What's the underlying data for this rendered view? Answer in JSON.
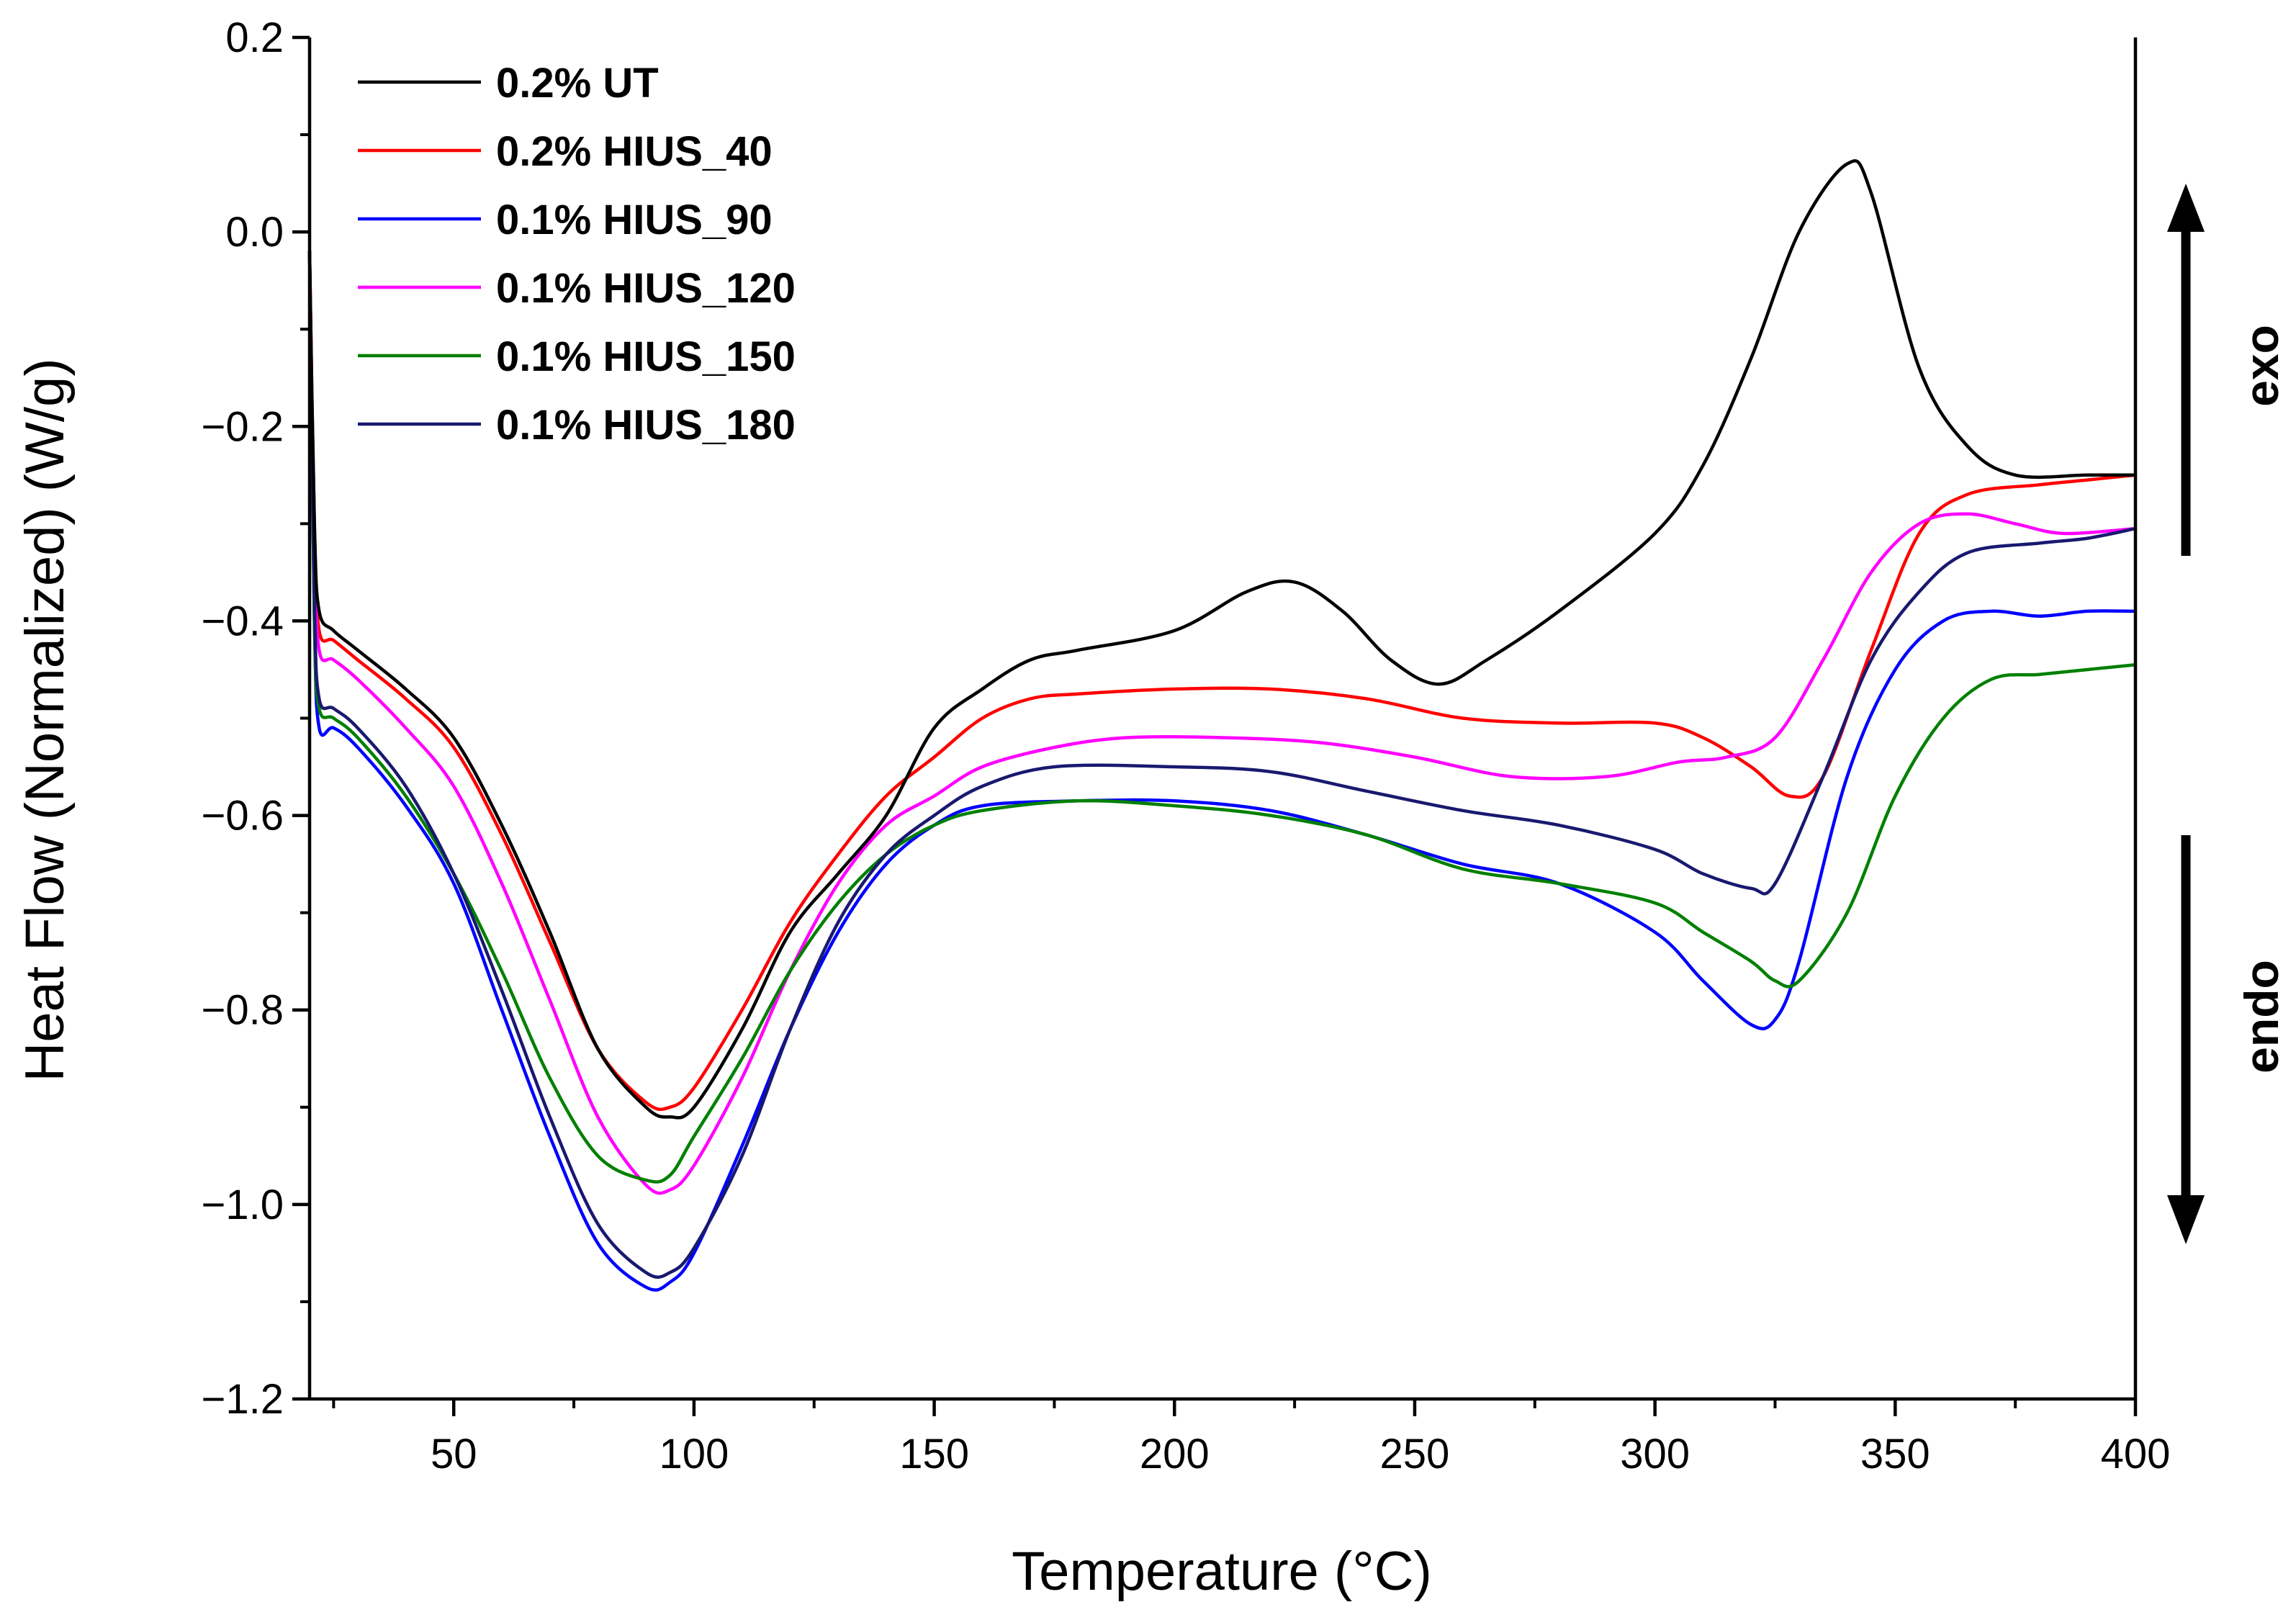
{
  "chart_data": {
    "type": "line",
    "title": "",
    "xlabel": "Temperature (°C)",
    "ylabel": "Heat Flow (Normalized) (W/g)",
    "xlim": [
      20,
      400
    ],
    "ylim": [
      -1.2,
      0.2
    ],
    "xticks": [
      50,
      100,
      150,
      200,
      250,
      300,
      350,
      400
    ],
    "xtick_labels": [
      "50",
      "100",
      "150",
      "200",
      "250",
      "300",
      "350",
      "400"
    ],
    "yticks": [
      -1.2,
      -1.0,
      -0.8,
      -0.6,
      -0.4,
      -0.2,
      0.0,
      0.2
    ],
    "ytick_labels": [
      "−1.2",
      "−1.0",
      "−0.8",
      "−0.6",
      "−0.4",
      "−0.2",
      "0.0",
      "0.2"
    ],
    "grid": false,
    "legend_position": "top-left",
    "annotations": {
      "exo": "exo",
      "endo": "endo"
    },
    "series": [
      {
        "name": "0.2% UT",
        "color": "#000000",
        "points": [
          [
            20,
            -0.02
          ],
          [
            21,
            -0.3
          ],
          [
            22,
            -0.39
          ],
          [
            25,
            -0.41
          ],
          [
            30,
            -0.43
          ],
          [
            40,
            -0.47
          ],
          [
            50,
            -0.52
          ],
          [
            60,
            -0.61
          ],
          [
            70,
            -0.72
          ],
          [
            80,
            -0.84
          ],
          [
            90,
            -0.9
          ],
          [
            95,
            -0.91
          ],
          [
            100,
            -0.9
          ],
          [
            110,
            -0.82
          ],
          [
            120,
            -0.72
          ],
          [
            130,
            -0.66
          ],
          [
            140,
            -0.6
          ],
          [
            150,
            -0.51
          ],
          [
            160,
            -0.47
          ],
          [
            170,
            -0.44
          ],
          [
            180,
            -0.43
          ],
          [
            200,
            -0.41
          ],
          [
            215,
            -0.37
          ],
          [
            225,
            -0.36
          ],
          [
            235,
            -0.39
          ],
          [
            245,
            -0.44
          ],
          [
            255,
            -0.465
          ],
          [
            265,
            -0.44
          ],
          [
            280,
            -0.39
          ],
          [
            300,
            -0.31
          ],
          [
            310,
            -0.24
          ],
          [
            320,
            -0.13
          ],
          [
            330,
            0.0
          ],
          [
            340,
            0.07
          ],
          [
            345,
            0.04
          ],
          [
            355,
            -0.14
          ],
          [
            365,
            -0.22
          ],
          [
            375,
            -0.25
          ],
          [
            390,
            -0.25
          ],
          [
            400,
            -0.25
          ]
        ]
      },
      {
        "name": "0.2% HIUS_40",
        "color": "#ff0000",
        "points": [
          [
            20,
            -0.02
          ],
          [
            21,
            -0.3
          ],
          [
            22,
            -0.41
          ],
          [
            25,
            -0.42
          ],
          [
            30,
            -0.44
          ],
          [
            40,
            -0.48
          ],
          [
            50,
            -0.53
          ],
          [
            60,
            -0.62
          ],
          [
            70,
            -0.73
          ],
          [
            80,
            -0.84
          ],
          [
            90,
            -0.895
          ],
          [
            95,
            -0.9
          ],
          [
            100,
            -0.88
          ],
          [
            110,
            -0.8
          ],
          [
            120,
            -0.71
          ],
          [
            130,
            -0.64
          ],
          [
            140,
            -0.58
          ],
          [
            150,
            -0.54
          ],
          [
            160,
            -0.5
          ],
          [
            170,
            -0.48
          ],
          [
            180,
            -0.475
          ],
          [
            200,
            -0.47
          ],
          [
            220,
            -0.47
          ],
          [
            240,
            -0.48
          ],
          [
            260,
            -0.5
          ],
          [
            280,
            -0.505
          ],
          [
            300,
            -0.505
          ],
          [
            310,
            -0.52
          ],
          [
            320,
            -0.55
          ],
          [
            328,
            -0.58
          ],
          [
            335,
            -0.56
          ],
          [
            345,
            -0.43
          ],
          [
            355,
            -0.31
          ],
          [
            365,
            -0.27
          ],
          [
            380,
            -0.26
          ],
          [
            390,
            -0.255
          ],
          [
            400,
            -0.25
          ]
        ]
      },
      {
        "name": "0.1% HIUS_90",
        "color": "#0000ff",
        "points": [
          [
            20,
            -0.02
          ],
          [
            21,
            -0.4
          ],
          [
            22,
            -0.51
          ],
          [
            25,
            -0.51
          ],
          [
            30,
            -0.53
          ],
          [
            40,
            -0.59
          ],
          [
            50,
            -0.67
          ],
          [
            60,
            -0.8
          ],
          [
            70,
            -0.93
          ],
          [
            80,
            -1.04
          ],
          [
            90,
            -1.085
          ],
          [
            95,
            -1.08
          ],
          [
            100,
            -1.05
          ],
          [
            110,
            -0.94
          ],
          [
            120,
            -0.82
          ],
          [
            130,
            -0.72
          ],
          [
            140,
            -0.65
          ],
          [
            150,
            -0.61
          ],
          [
            160,
            -0.59
          ],
          [
            180,
            -0.585
          ],
          [
            200,
            -0.585
          ],
          [
            220,
            -0.595
          ],
          [
            240,
            -0.62
          ],
          [
            260,
            -0.65
          ],
          [
            280,
            -0.67
          ],
          [
            300,
            -0.72
          ],
          [
            310,
            -0.77
          ],
          [
            320,
            -0.815
          ],
          [
            325,
            -0.81
          ],
          [
            330,
            -0.75
          ],
          [
            340,
            -0.56
          ],
          [
            350,
            -0.45
          ],
          [
            360,
            -0.4
          ],
          [
            370,
            -0.39
          ],
          [
            380,
            -0.395
          ],
          [
            390,
            -0.39
          ],
          [
            400,
            -0.39
          ]
        ]
      },
      {
        "name": "0.1% HIUS_120",
        "color": "#ff00ff",
        "points": [
          [
            20,
            -0.02
          ],
          [
            21,
            -0.32
          ],
          [
            22,
            -0.43
          ],
          [
            25,
            -0.44
          ],
          [
            30,
            -0.46
          ],
          [
            40,
            -0.51
          ],
          [
            50,
            -0.57
          ],
          [
            60,
            -0.67
          ],
          [
            70,
            -0.79
          ],
          [
            80,
            -0.91
          ],
          [
            90,
            -0.98
          ],
          [
            95,
            -0.985
          ],
          [
            100,
            -0.96
          ],
          [
            110,
            -0.87
          ],
          [
            120,
            -0.76
          ],
          [
            130,
            -0.67
          ],
          [
            140,
            -0.61
          ],
          [
            150,
            -0.58
          ],
          [
            160,
            -0.55
          ],
          [
            175,
            -0.53
          ],
          [
            190,
            -0.52
          ],
          [
            210,
            -0.52
          ],
          [
            230,
            -0.525
          ],
          [
            250,
            -0.54
          ],
          [
            270,
            -0.56
          ],
          [
            290,
            -0.56
          ],
          [
            305,
            -0.545
          ],
          [
            315,
            -0.54
          ],
          [
            325,
            -0.52
          ],
          [
            335,
            -0.44
          ],
          [
            345,
            -0.35
          ],
          [
            355,
            -0.3
          ],
          [
            365,
            -0.29
          ],
          [
            375,
            -0.3
          ],
          [
            385,
            -0.31
          ],
          [
            400,
            -0.305
          ]
        ]
      },
      {
        "name": "0.1% HIUS_150",
        "color": "#008000",
        "points": [
          [
            20,
            -0.02
          ],
          [
            21,
            -0.4
          ],
          [
            22,
            -0.49
          ],
          [
            25,
            -0.5
          ],
          [
            30,
            -0.52
          ],
          [
            40,
            -0.58
          ],
          [
            50,
            -0.66
          ],
          [
            60,
            -0.76
          ],
          [
            70,
            -0.87
          ],
          [
            80,
            -0.95
          ],
          [
            90,
            -0.975
          ],
          [
            95,
            -0.97
          ],
          [
            100,
            -0.93
          ],
          [
            110,
            -0.85
          ],
          [
            120,
            -0.76
          ],
          [
            130,
            -0.69
          ],
          [
            140,
            -0.64
          ],
          [
            150,
            -0.61
          ],
          [
            160,
            -0.595
          ],
          [
            180,
            -0.585
          ],
          [
            200,
            -0.59
          ],
          [
            220,
            -0.6
          ],
          [
            240,
            -0.62
          ],
          [
            260,
            -0.655
          ],
          [
            280,
            -0.67
          ],
          [
            300,
            -0.69
          ],
          [
            310,
            -0.72
          ],
          [
            320,
            -0.75
          ],
          [
            325,
            -0.77
          ],
          [
            330,
            -0.77
          ],
          [
            340,
            -0.7
          ],
          [
            350,
            -0.58
          ],
          [
            360,
            -0.5
          ],
          [
            370,
            -0.46
          ],
          [
            380,
            -0.455
          ],
          [
            390,
            -0.45
          ],
          [
            400,
            -0.445
          ]
        ]
      },
      {
        "name": "0.1% HIUS_180",
        "color": "#191970",
        "points": [
          [
            20,
            -0.02
          ],
          [
            21,
            -0.38
          ],
          [
            22,
            -0.48
          ],
          [
            25,
            -0.49
          ],
          [
            30,
            -0.51
          ],
          [
            40,
            -0.57
          ],
          [
            50,
            -0.66
          ],
          [
            60,
            -0.78
          ],
          [
            70,
            -0.91
          ],
          [
            80,
            -1.02
          ],
          [
            90,
            -1.07
          ],
          [
            95,
            -1.07
          ],
          [
            100,
            -1.045
          ],
          [
            110,
            -0.95
          ],
          [
            120,
            -0.82
          ],
          [
            130,
            -0.71
          ],
          [
            140,
            -0.64
          ],
          [
            150,
            -0.6
          ],
          [
            160,
            -0.57
          ],
          [
            175,
            -0.55
          ],
          [
            200,
            -0.55
          ],
          [
            220,
            -0.555
          ],
          [
            240,
            -0.575
          ],
          [
            260,
            -0.595
          ],
          [
            280,
            -0.61
          ],
          [
            300,
            -0.635
          ],
          [
            310,
            -0.66
          ],
          [
            320,
            -0.675
          ],
          [
            325,
            -0.67
          ],
          [
            335,
            -0.56
          ],
          [
            345,
            -0.44
          ],
          [
            355,
            -0.37
          ],
          [
            365,
            -0.33
          ],
          [
            380,
            -0.32
          ],
          [
            390,
            -0.315
          ],
          [
            400,
            -0.305
          ]
        ]
      }
    ]
  }
}
